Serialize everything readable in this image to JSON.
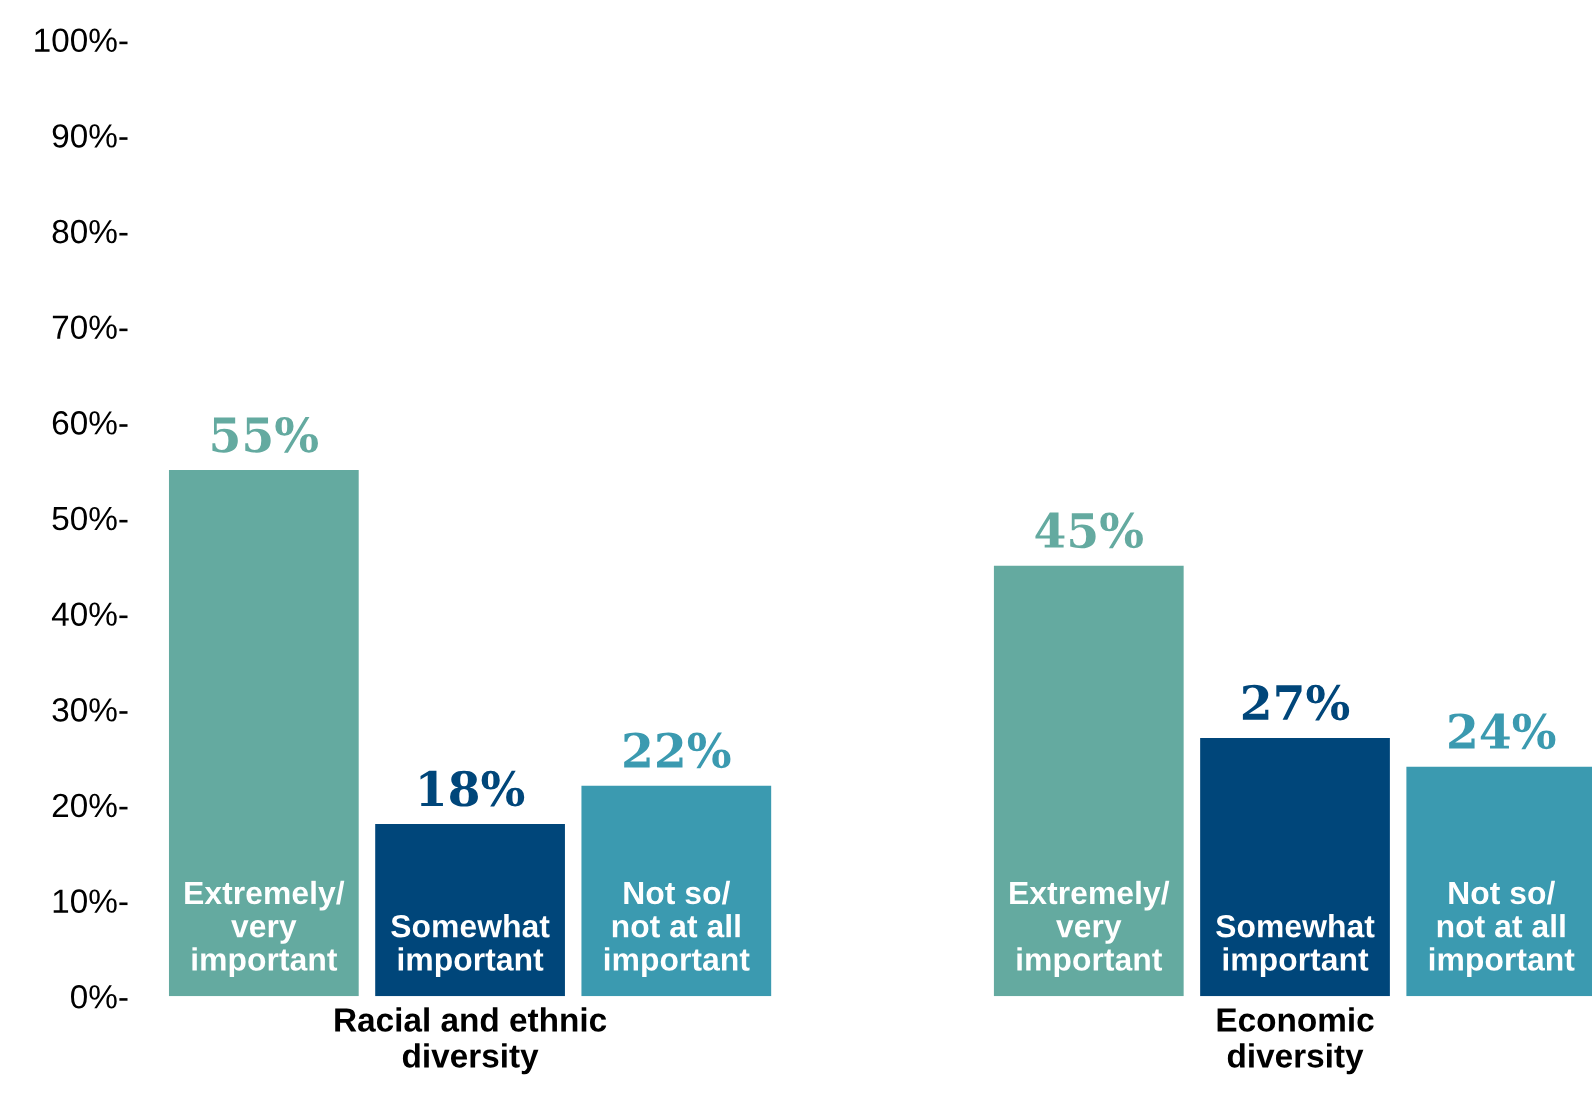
{
  "chart_data": {
    "type": "bar",
    "categories": [
      "Racial and ethnic\ndiversity",
      "Economic\ndiversity"
    ],
    "series": [
      {
        "name": "Extremely/\nvery\nimportant",
        "color": "#64aaa0",
        "values": [
          55,
          45
        ]
      },
      {
        "name": "Somewhat\nimportant",
        "color": "#00467a",
        "values": [
          18,
          27
        ]
      },
      {
        "name": "Not so/\nnot at all\nimportant",
        "color": "#3b9ab0",
        "values": [
          22,
          24
        ]
      }
    ],
    "ylim": [
      0,
      100
    ],
    "yticks": [
      {
        "value": 0,
        "label": "0%-"
      },
      {
        "value": 10,
        "label": "10%-"
      },
      {
        "value": 20,
        "label": "20%-"
      },
      {
        "value": 30,
        "label": "30%-"
      },
      {
        "value": 40,
        "label": "40%-"
      },
      {
        "value": 50,
        "label": "50%-"
      },
      {
        "value": 60,
        "label": "60%-"
      },
      {
        "value": 70,
        "label": "70%-"
      },
      {
        "value": 80,
        "label": "80%-"
      },
      {
        "value": 90,
        "label": "90%-"
      },
      {
        "value": 100,
        "label": "100%-"
      }
    ],
    "value_labels": [
      [
        "55%",
        "45%"
      ],
      [
        "18%",
        "27%"
      ],
      [
        "22%",
        "24%"
      ]
    ],
    "grid": false,
    "legend": false
  }
}
